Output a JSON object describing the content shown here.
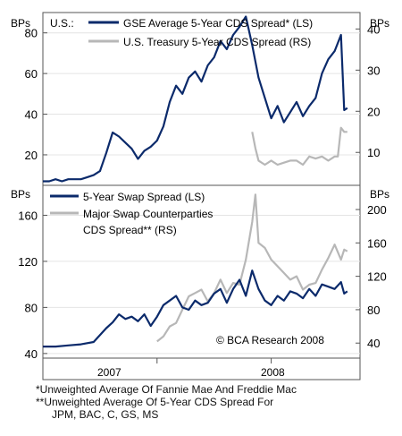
{
  "footnotes": [
    "*Unweighted Average Of Fannie Mae And Freddie Mac",
    "**Unweighted Average Of 5-Year CDS Spread For",
    "JPM, BAC, C, GS, MS"
  ],
  "colors": {
    "navy": "#0b2a6b",
    "gray": "#b7b7b7",
    "grid": "#e4e4e4"
  },
  "chart_data": [
    {
      "type": "line",
      "title": "U.S.:",
      "left_axis_unit": "BPs",
      "right_axis_unit": "BPs",
      "left_ticks": [
        "20",
        "40",
        "60",
        "80"
      ],
      "right_ticks": [
        "10",
        "20",
        "30",
        "40"
      ],
      "left_ylim": [
        5,
        90
      ],
      "right_ylim": [
        2,
        44
      ],
      "x_ticks": [
        "2007",
        "2008"
      ],
      "series": [
        {
          "name": "GSE Average 5-Year CDS Spread* (LS)",
          "axis": "left",
          "color": "#0b2a6b",
          "x": [
            0,
            0.02,
            0.04,
            0.06,
            0.08,
            0.1,
            0.12,
            0.14,
            0.16,
            0.18,
            0.2,
            0.22,
            0.24,
            0.26,
            0.28,
            0.3,
            0.32,
            0.34,
            0.36,
            0.38,
            0.4,
            0.42,
            0.44,
            0.46,
            0.48,
            0.5,
            0.52,
            0.54,
            0.56,
            0.58,
            0.6,
            0.62,
            0.64,
            0.66,
            0.68,
            0.7,
            0.72,
            0.74,
            0.76,
            0.78,
            0.8,
            0.82,
            0.84,
            0.86,
            0.88,
            0.9,
            0.92,
            0.94,
            0.95,
            0.96
          ],
          "values": [
            7,
            7,
            8,
            7,
            8,
            8,
            8,
            9,
            10,
            12,
            21,
            31,
            29,
            26,
            23,
            18,
            22,
            24,
            27,
            34,
            46,
            54,
            50,
            58,
            61,
            56,
            64,
            68,
            76,
            72,
            79,
            83,
            88,
            74,
            58,
            48,
            38,
            44,
            36,
            41,
            46,
            39,
            44,
            48,
            60,
            67,
            71,
            79,
            42,
            43
          ]
        },
        {
          "name": "U.S. Treasury 5-Year CDS Spread (RS)",
          "axis": "right",
          "color": "#b7b7b7",
          "x": [
            0.66,
            0.67,
            0.68,
            0.7,
            0.72,
            0.74,
            0.76,
            0.78,
            0.8,
            0.82,
            0.84,
            0.86,
            0.88,
            0.9,
            0.92,
            0.93,
            0.94,
            0.95,
            0.96
          ],
          "values": [
            15,
            11,
            8,
            7,
            8,
            7,
            7.5,
            8,
            8,
            7,
            9,
            8.5,
            9,
            8,
            9,
            9,
            16,
            15,
            15
          ]
        }
      ]
    },
    {
      "type": "line",
      "left_axis_unit": "BPs",
      "right_axis_unit": "BPs",
      "left_ticks": [
        "40",
        "80",
        "120",
        "160"
      ],
      "right_ticks": [
        "40",
        "80",
        "120",
        "160",
        "200"
      ],
      "left_ylim": [
        36,
        186
      ],
      "right_ylim": [
        22,
        229
      ],
      "x_ticks": [
        "2007",
        "2008"
      ],
      "annotation": "© BCA Research 2008",
      "series": [
        {
          "name": "5-Year Swap Spread (LS)",
          "axis": "left",
          "color": "#0b2a6b",
          "x": [
            0,
            0.04,
            0.08,
            0.12,
            0.16,
            0.18,
            0.2,
            0.22,
            0.24,
            0.26,
            0.28,
            0.3,
            0.32,
            0.34,
            0.36,
            0.38,
            0.4,
            0.42,
            0.44,
            0.46,
            0.48,
            0.5,
            0.52,
            0.54,
            0.56,
            0.58,
            0.6,
            0.62,
            0.64,
            0.66,
            0.68,
            0.7,
            0.72,
            0.74,
            0.76,
            0.78,
            0.8,
            0.82,
            0.84,
            0.86,
            0.88,
            0.9,
            0.92,
            0.94,
            0.95,
            0.96
          ],
          "values": [
            46,
            46,
            47,
            48,
            50,
            56,
            62,
            67,
            74,
            70,
            72,
            68,
            74,
            64,
            72,
            82,
            86,
            90,
            80,
            78,
            86,
            82,
            84,
            92,
            96,
            84,
            96,
            104,
            90,
            112,
            96,
            86,
            82,
            90,
            86,
            94,
            92,
            88,
            96,
            90,
            100,
            98,
            96,
            102,
            92,
            94
          ]
        },
        {
          "name": "Major Swap Counterparties CDS Spread** (RS)",
          "axis": "right",
          "color": "#b7b7b7",
          "x": [
            0.36,
            0.38,
            0.4,
            0.42,
            0.44,
            0.46,
            0.48,
            0.5,
            0.52,
            0.54,
            0.56,
            0.58,
            0.6,
            0.62,
            0.64,
            0.66,
            0.67,
            0.68,
            0.7,
            0.72,
            0.74,
            0.76,
            0.78,
            0.8,
            0.82,
            0.84,
            0.86,
            0.88,
            0.9,
            0.92,
            0.94,
            0.95,
            0.96
          ],
          "values": [
            42,
            48,
            60,
            64,
            80,
            96,
            100,
            104,
            90,
            100,
            116,
            100,
            112,
            110,
            140,
            185,
            218,
            160,
            154,
            140,
            132,
            124,
            116,
            120,
            104,
            110,
            112,
            128,
            142,
            158,
            140,
            152,
            150
          ]
        }
      ]
    }
  ]
}
